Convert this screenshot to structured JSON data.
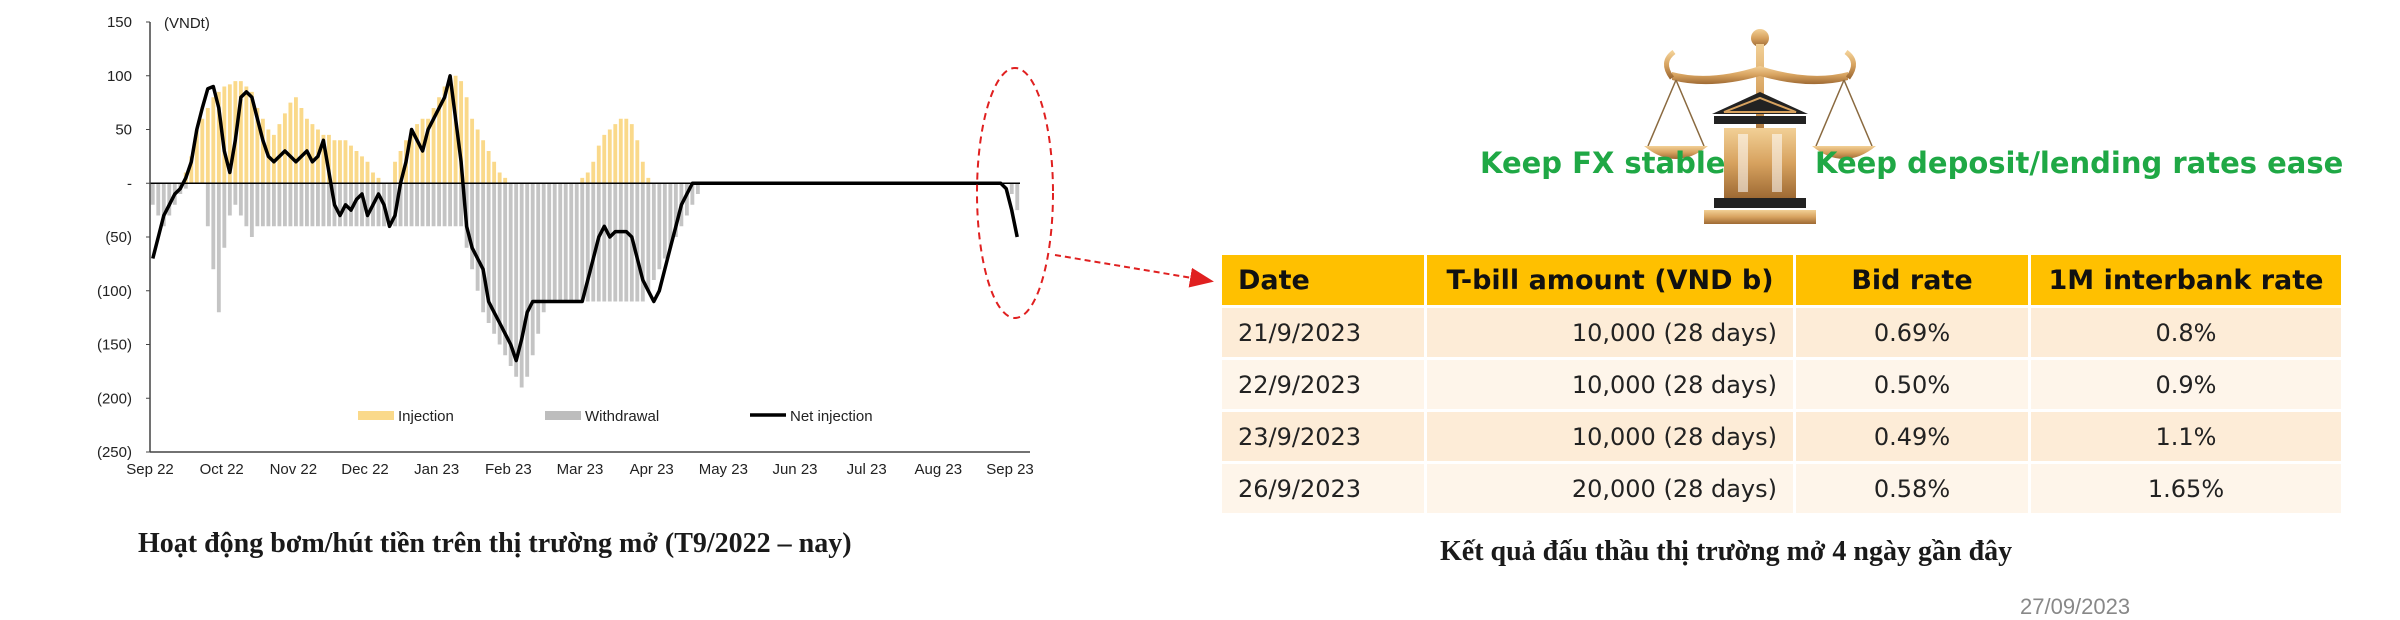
{
  "chart_data": {
    "type": "bar",
    "unit_label": "(VNDt)",
    "ylim": [
      -250,
      150
    ],
    "y_ticks": [
      150,
      100,
      50,
      0,
      -50,
      -100,
      -150,
      -200,
      -250
    ],
    "y_tick_labels": [
      "150",
      "100",
      "50",
      "-",
      "(50)",
      "(100)",
      "(150)",
      "(200)",
      "(250)"
    ],
    "x_tick_labels": [
      "Sep 22",
      "Oct 22",
      "Nov 22",
      "Dec 22",
      "Jan 23",
      "Feb 23",
      "Mar 23",
      "Apr 23",
      "May 23",
      "Jun 23",
      "Jul 23",
      "Aug 23",
      "Sep 23"
    ],
    "grid": false,
    "legend": {
      "placement": "bottom",
      "entries": [
        "Injection",
        "Withdrawal",
        "Net injection"
      ]
    },
    "colors": {
      "injection": "#fad98a",
      "withdrawal": "#c4c4c4",
      "net": "#000000",
      "highlight": "#e02020"
    },
    "series": [
      {
        "name": "Injection",
        "values": [
          0,
          0,
          0,
          0,
          0,
          0,
          10,
          25,
          50,
          60,
          70,
          80,
          85,
          90,
          92,
          95,
          95,
          90,
          85,
          70,
          60,
          50,
          45,
          55,
          65,
          75,
          80,
          70,
          60,
          55,
          50,
          45,
          45,
          40,
          40,
          40,
          35,
          30,
          25,
          20,
          10,
          5,
          0,
          0,
          20,
          30,
          40,
          50,
          55,
          60,
          60,
          70,
          80,
          90,
          100,
          100,
          95,
          80,
          60,
          50,
          40,
          30,
          20,
          10,
          5,
          0,
          0,
          0,
          0,
          0,
          0,
          0,
          0,
          0,
          0,
          0,
          0,
          0,
          5,
          10,
          20,
          35,
          45,
          50,
          55,
          60,
          60,
          55,
          40,
          20,
          5,
          0,
          0,
          0,
          0,
          0,
          0,
          0,
          0,
          0,
          0,
          0,
          0,
          0,
          0,
          0,
          0,
          0,
          0,
          0,
          0,
          0,
          0,
          0,
          0,
          0,
          0,
          0,
          0,
          0,
          0,
          0,
          0,
          0,
          0,
          0,
          0,
          0,
          0,
          0,
          0,
          0,
          0,
          0,
          0,
          0,
          0,
          0,
          0,
          0,
          0,
          0,
          0,
          0,
          0,
          0,
          0,
          0,
          0,
          0,
          0,
          0,
          0,
          0,
          0
        ]
      },
      {
        "name": "Withdrawal",
        "values": [
          -20,
          -30,
          -40,
          -30,
          -20,
          -10,
          -5,
          0,
          0,
          0,
          -40,
          -80,
          -120,
          -60,
          -30,
          -20,
          -30,
          -40,
          -50,
          -40,
          -40,
          -40,
          -40,
          -40,
          -40,
          -40,
          -40,
          -40,
          -40,
          -40,
          -40,
          -40,
          -40,
          -40,
          -40,
          -40,
          -40,
          -40,
          -40,
          -40,
          -40,
          -40,
          -40,
          -40,
          -40,
          -40,
          -40,
          -40,
          -40,
          -40,
          -40,
          -40,
          -40,
          -40,
          -40,
          -40,
          -40,
          -60,
          -80,
          -100,
          -120,
          -130,
          -140,
          -150,
          -160,
          -170,
          -180,
          -190,
          -180,
          -160,
          -140,
          -120,
          -110,
          -110,
          -110,
          -110,
          -110,
          -110,
          -110,
          -110,
          -110,
          -110,
          -110,
          -110,
          -110,
          -110,
          -110,
          -110,
          -110,
          -110,
          -100,
          -90,
          -80,
          -70,
          -60,
          -50,
          -40,
          -30,
          -20,
          -10,
          0,
          0,
          0,
          0,
          0,
          0,
          0,
          0,
          0,
          0,
          0,
          0,
          0,
          0,
          0,
          0,
          0,
          0,
          0,
          0,
          0,
          0,
          0,
          0,
          0,
          0,
          0,
          0,
          0,
          0,
          0,
          0,
          0,
          0,
          0,
          0,
          0,
          0,
          0,
          0,
          0,
          0,
          0,
          0,
          0,
          0,
          0,
          0,
          0,
          0,
          0,
          0,
          0,
          0,
          0,
          0,
          -10,
          -25,
          -45,
          -55
        ]
      },
      {
        "name": "Net injection",
        "values": [
          -70,
          -50,
          -30,
          -20,
          -10,
          -5,
          5,
          20,
          50,
          70,
          88,
          90,
          70,
          30,
          10,
          40,
          80,
          85,
          80,
          60,
          40,
          25,
          20,
          25,
          30,
          25,
          20,
          25,
          30,
          20,
          25,
          40,
          10,
          -20,
          -30,
          -20,
          -25,
          -15,
          -10,
          -30,
          -20,
          -10,
          -20,
          -40,
          -30,
          0,
          20,
          50,
          40,
          30,
          50,
          60,
          70,
          80,
          100,
          60,
          20,
          -40,
          -60,
          -70,
          -80,
          -110,
          -120,
          -130,
          -140,
          -150,
          -165,
          -145,
          -120,
          -110,
          -110,
          -110,
          -110,
          -110,
          -110,
          -110,
          -110,
          -110,
          -110,
          -90,
          -70,
          -50,
          -40,
          -50,
          -45,
          -45,
          -45,
          -50,
          -70,
          -90,
          -100,
          -110,
          -100,
          -80,
          -60,
          -40,
          -20,
          -10,
          0,
          0,
          0,
          0,
          0,
          0,
          0,
          0,
          0,
          0,
          0,
          0,
          0,
          0,
          0,
          0,
          0,
          0,
          0,
          0,
          0,
          0,
          0,
          0,
          0,
          0,
          0,
          0,
          0,
          0,
          0,
          0,
          0,
          0,
          0,
          0,
          0,
          0,
          0,
          0,
          0,
          0,
          0,
          0,
          0,
          0,
          0,
          0,
          0,
          0,
          0,
          0,
          0,
          0,
          0,
          0,
          0,
          -5,
          -25,
          -50
        ]
      }
    ]
  },
  "captions": {
    "left": "Hoạt động bơm/hút tiền trên thị trường mở (T9/2022 – nay)",
    "right": "Kết quả đấu thầu thị trường mở 4 ngày gần đây"
  },
  "policy": {
    "left_label": "Keep FX stable",
    "right_label": "Keep deposit/lending rates ease",
    "icon": "balance-scale-icon"
  },
  "table": {
    "headers": [
      "Date",
      "T-bill amount (VND b)",
      "Bid rate",
      "1M interbank rate"
    ],
    "rows": [
      [
        "21/9/2023",
        "10,000 (28 days)",
        "0.69%",
        "0.8%"
      ],
      [
        "22/9/2023",
        "10,000 (28 days)",
        "0.50%",
        "0.9%"
      ],
      [
        "23/9/2023",
        "10,000 (28 days)",
        "0.49%",
        "1.1%"
      ],
      [
        "26/9/2023",
        "20,000 (28 days)",
        "0.58%",
        "1.65%"
      ]
    ]
  },
  "footer": {
    "date_mark": "27/09/2023"
  }
}
